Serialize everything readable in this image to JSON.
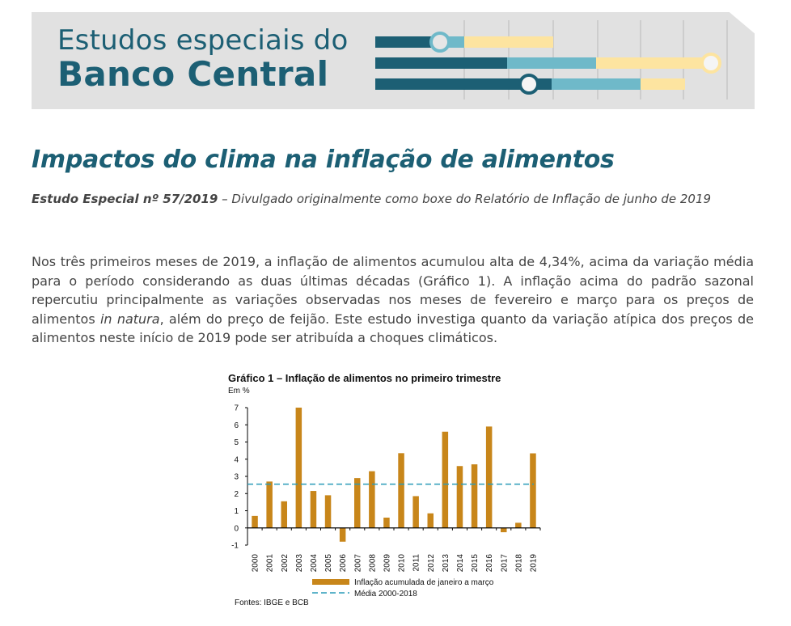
{
  "banner": {
    "line1": "Estudos especiais do",
    "line2": "Banco Central"
  },
  "article": {
    "title": "Impactos do clima na inflação de alimentos",
    "subtitle_bold": "Estudo Especial nº 57/2019",
    "subtitle_rest": " – Divulgado originalmente como boxe do Relatório de Inflação de junho de 2019",
    "para_part1": "Nos três primeiros meses de 2019, a inflação de alimentos acumulou alta de 4,34%, acima da variação média para o período considerando as duas últimas décadas (Gráfico 1). A inflação acima do padrão sazonal repercutiu principalmente as variações observadas nos meses de fevereiro e março para os preços de alimentos ",
    "para_italic": "in natura",
    "para_part2": ", além do preço de feijão. Este estudo investiga quanto da variação atípica dos preços de alimentos neste início de 2019 pode ser atribuída a choques climáticos."
  },
  "figure": {
    "title": "Gráfico 1 – Inflação de alimentos no primeiro trimestre",
    "unit": "Em %",
    "source": "Fontes: IBGE e BCB"
  },
  "colors": {
    "brand": "#1c5f74",
    "bar": "#c8861a",
    "mean_line": "#2a9bb8",
    "banner_bg": "#e1e1e1"
  },
  "chart_data": {
    "type": "bar",
    "categories": [
      "2000",
      "2001",
      "2002",
      "2003",
      "2004",
      "2005",
      "2006",
      "2007",
      "2008",
      "2009",
      "2010",
      "2011",
      "2012",
      "2013",
      "2014",
      "2015",
      "2016",
      "2017",
      "2018",
      "2019"
    ],
    "series": [
      {
        "name": "Inflação acumulada de janeiro a março",
        "type": "bar",
        "values": [
          0.7,
          2.7,
          1.55,
          7.0,
          2.15,
          1.9,
          -0.8,
          2.9,
          3.3,
          0.6,
          4.35,
          1.85,
          0.85,
          5.6,
          3.6,
          3.7,
          5.9,
          -0.25,
          0.3,
          4.34
        ]
      },
      {
        "name": "Média 2000-2018",
        "type": "line",
        "value": 2.55
      }
    ],
    "yticks": [
      -1,
      0,
      1,
      2,
      3,
      4,
      5,
      6,
      7
    ],
    "ylim": [
      -1,
      7
    ],
    "legend_position": "bottom"
  }
}
